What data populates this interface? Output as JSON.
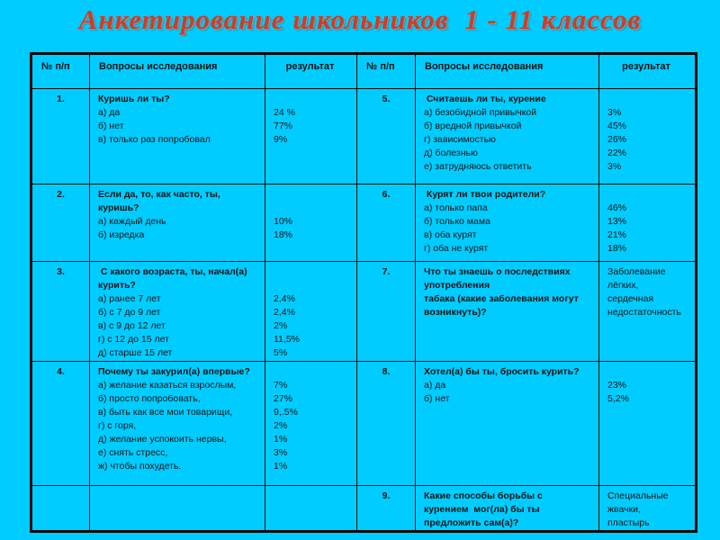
{
  "title": "Анкетирование школьников  1 - 11 классов",
  "colors": {
    "background": "#00ccff",
    "title_text": "#cd3d27",
    "table_border": "#0b0b0b",
    "body_text": "#141414"
  },
  "header": {
    "num": "№ п/п",
    "questions": "Вопросы исследования",
    "result": "результат"
  },
  "rows": [
    {
      "left": {
        "num": "1.",
        "title_lines": [
          "Куришь ли ты?"
        ],
        "options": [
          "а) да",
          "б) нет",
          "в) только раз попробовал"
        ],
        "results": [
          "",
          "24 %",
          "77%",
          "9%"
        ]
      },
      "right": {
        "num": "5.",
        "title_lines": [
          " Считаешь ли ты, курение"
        ],
        "options": [
          "а) безобидной привычкой",
          "б) вредной привычкой",
          "г) зависимостью",
          "д) болезнью",
          "е) затрудняюсь ответить"
        ],
        "results": [
          "",
          "3%",
          "45%",
          "26%",
          "22%",
          "3%"
        ]
      }
    },
    {
      "left": {
        "num": "2.",
        "title_lines": [
          "Если да, то, как часто, ты,",
          "куришь?"
        ],
        "options": [
          "а) каждый день",
          "б) изредка"
        ],
        "results": [
          "",
          "",
          "10%",
          "18%"
        ]
      },
      "right": {
        "num": "6.",
        "title_lines": [
          " Курят ли твои родители?"
        ],
        "options": [
          "а) только папа",
          "б) только мама",
          "в) оба курят",
          "г) оба не курят"
        ],
        "results": [
          "",
          "46%",
          "13%",
          "21%",
          "18%"
        ]
      }
    },
    {
      "left": {
        "num": "3.",
        "title_lines": [
          " С какого возраста, ты, начал(а)",
          "курить?"
        ],
        "options": [
          "а) ранее 7 лет",
          "б) с 7 до 9 лет",
          "в) с 9 до 12 лет",
          "г) с 12 до 15 лет",
          "д) старше 15 лет"
        ],
        "results": [
          "",
          "",
          "2,4%",
          "2,4%",
          "2%",
          "11,5%",
          "5%"
        ]
      },
      "right": {
        "num": "7.",
        "title_lines": [
          "Что ты знаешь о последствиях",
          "употребления",
          "табака (какие заболевания могут",
          "возникнуть)?"
        ],
        "options": [],
        "results": [
          "Заболевание",
          "лёгких,",
          "сердечная",
          "недостаточность"
        ]
      }
    },
    {
      "left": {
        "num": "4.",
        "title_lines": [
          "Почему ты закурил(а) впервые?"
        ],
        "options": [
          "а) желание казаться взрослым,",
          "б) просто попробовать,",
          "в) быть как все мои товарищи,",
          "г) с горя,",
          "д) желание успокоить нервы,",
          "е) снять стресс,",
          "ж) чтобы похудеть."
        ],
        "results": [
          "",
          "7%",
          "27%",
          "9,.5%",
          "2%",
          "1%",
          "3%",
          "1%"
        ]
      },
      "right": {
        "num": "8.",
        "title_lines": [
          "Хотел(а) бы ты, бросить курить?"
        ],
        "options": [
          "а) да",
          "б) нет"
        ],
        "results": [
          "",
          "23%",
          "5,2%"
        ]
      }
    },
    {
      "left": {
        "num": "",
        "title_lines": [],
        "options": [],
        "results": []
      },
      "right": {
        "num": "9.",
        "title_lines": [
          "Какие способы борьбы с",
          "курением  мог(ла) бы ты",
          "предложить сам(а)?"
        ],
        "options": [],
        "results": [
          "Специальные",
          "жвачки,",
          "пластырь"
        ]
      }
    }
  ]
}
